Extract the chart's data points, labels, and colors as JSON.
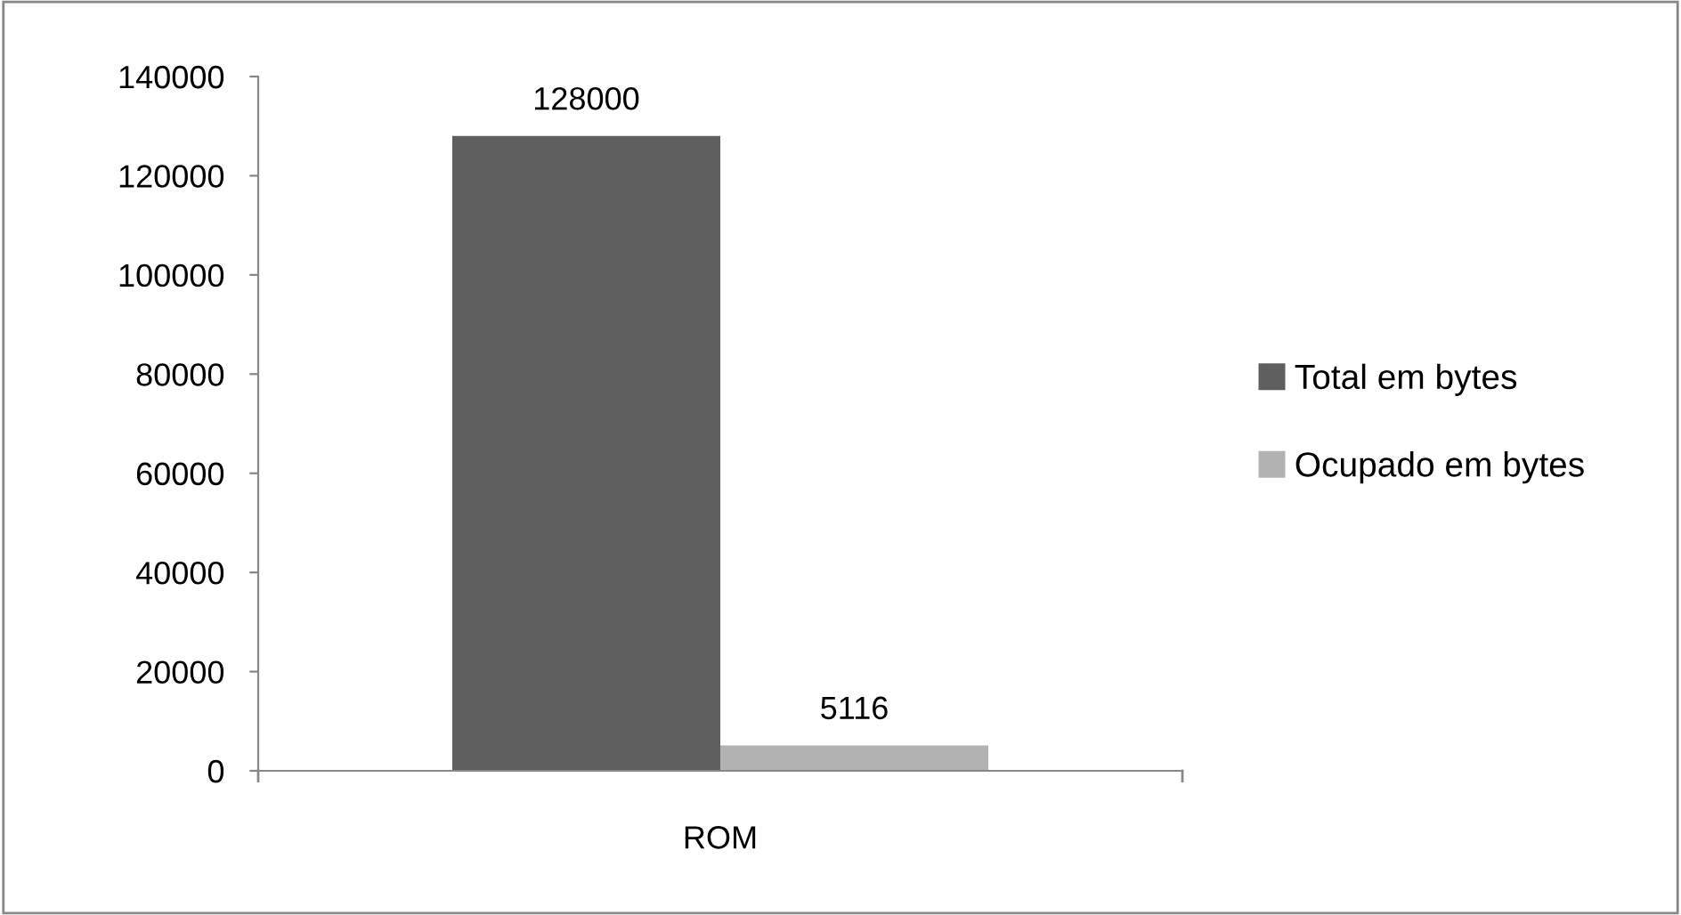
{
  "chart_data": {
    "type": "bar",
    "categories": [
      "ROM"
    ],
    "series": [
      {
        "name": "Total em bytes",
        "color": "#5f5f5f",
        "values": [
          128000
        ]
      },
      {
        "name": "Ocupado em bytes",
        "color": "#b2b2b2",
        "values": [
          5116
        ]
      }
    ],
    "ylim": [
      0,
      140000
    ],
    "yticks": [
      0,
      20000,
      40000,
      60000,
      80000,
      100000,
      120000,
      140000
    ],
    "data_labels": true,
    "grid": false,
    "legend": "right"
  }
}
